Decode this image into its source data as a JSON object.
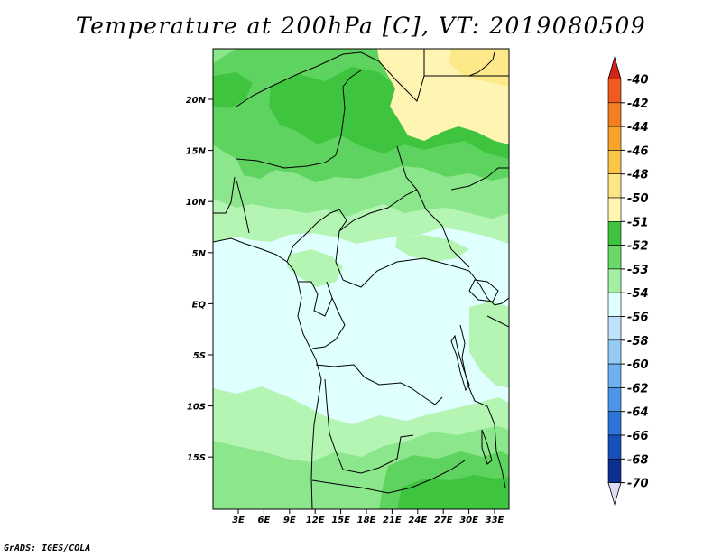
{
  "title": "Temperature at 200hPa [C], VT: 2019080509",
  "footer": "GrADS: IGES/COLA",
  "map": {
    "lat_ticks": [
      "20N",
      "15N",
      "10N",
      "5N",
      "EQ",
      "5S",
      "10S",
      "15S"
    ],
    "lon_ticks": [
      "3E",
      "6E",
      "9E",
      "12E",
      "15E",
      "18E",
      "21E",
      "24E",
      "27E",
      "30E",
      "33E"
    ]
  },
  "colorbar": {
    "labels": [
      "-40",
      "-42",
      "-44",
      "-46",
      "-48",
      "-50",
      "-51",
      "-52",
      "-53",
      "-54",
      "-56",
      "-58",
      "-60",
      "-62",
      "-64",
      "-66",
      "-68",
      "-70"
    ],
    "colors": [
      "#e8331c",
      "#f05b1d",
      "#f47f20",
      "#f8a42a",
      "#fbc648",
      "#fde684",
      "#fff5b3",
      "#3fc43f",
      "#6ad96a",
      "#a3f0a3",
      "#e0ffff",
      "#bde2fa",
      "#94cbf7",
      "#6eb1f0",
      "#4d95e8",
      "#2c74d8",
      "#1750b8",
      "#0b2f8f",
      "#06157a"
    ],
    "top_color": "#d42415",
    "bottom_color": "#ddddf5"
  },
  "colors": {
    "light_cyan": "#e0ffff",
    "pale_green": "#b4f5b4",
    "light_green": "#8ce68c",
    "mid_green": "#5fd35f",
    "dark_green": "#3fc43f",
    "pale_yellow": "#fff5b3",
    "yellow": "#fde98a"
  }
}
